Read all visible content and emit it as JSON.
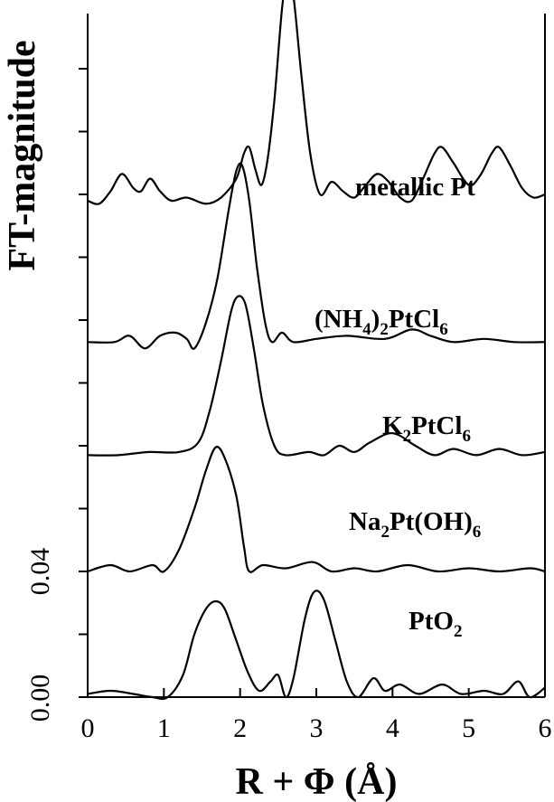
{
  "chart_data": {
    "type": "line",
    "xlabel": "R + Φ (Å)",
    "ylabel": "FT-magnitude",
    "xlim": [
      0,
      6
    ],
    "x_ticks": [
      "0",
      "1",
      "2",
      "3",
      "4",
      "5",
      "6"
    ],
    "y_tick_labels": [
      "0.00",
      "0.04"
    ],
    "series": [
      {
        "name": "PtO2",
        "label_main": "PtO",
        "label_sub": "2",
        "offset": 0.0,
        "points": [
          [
            0,
            0.001
          ],
          [
            0.3,
            0.002
          ],
          [
            0.6,
            0.001
          ],
          [
            0.85,
            0.0
          ],
          [
            1.05,
            0.0
          ],
          [
            1.25,
            0.007
          ],
          [
            1.4,
            0.02
          ],
          [
            1.55,
            0.028
          ],
          [
            1.68,
            0.0305
          ],
          [
            1.8,
            0.028
          ],
          [
            1.95,
            0.018
          ],
          [
            2.1,
            0.008
          ],
          [
            2.25,
            0.002
          ],
          [
            2.4,
            0.005
          ],
          [
            2.5,
            0.007
          ],
          [
            2.6,
            0.0
          ],
          [
            2.7,
            0.006
          ],
          [
            2.85,
            0.025
          ],
          [
            2.97,
            0.0335
          ],
          [
            3.1,
            0.031
          ],
          [
            3.25,
            0.018
          ],
          [
            3.4,
            0.005
          ],
          [
            3.55,
            0.0
          ],
          [
            3.75,
            0.006
          ],
          [
            3.9,
            0.002
          ],
          [
            4.1,
            0.004
          ],
          [
            4.35,
            0.001
          ],
          [
            4.65,
            0.004
          ],
          [
            4.9,
            0.001
          ],
          [
            5.2,
            0.002
          ],
          [
            5.45,
            0.001
          ],
          [
            5.65,
            0.005
          ],
          [
            5.8,
            0.0
          ],
          [
            6.0,
            0.003
          ]
        ]
      },
      {
        "name": "Na2Pt(OH)6",
        "label_main": "Na",
        "label_sub1": "2",
        "label_mid": "Pt(OH)",
        "label_sub2": "6",
        "offset": 0.04,
        "points": [
          [
            0,
            0.0
          ],
          [
            0.3,
            0.002
          ],
          [
            0.55,
            0.0
          ],
          [
            0.85,
            0.002
          ],
          [
            1.0,
            0.0
          ],
          [
            1.2,
            0.007
          ],
          [
            1.4,
            0.02
          ],
          [
            1.55,
            0.032
          ],
          [
            1.68,
            0.0395
          ],
          [
            1.8,
            0.036
          ],
          [
            1.95,
            0.024
          ],
          [
            2.05,
            0.008
          ],
          [
            2.12,
            0.0
          ],
          [
            2.3,
            0.002
          ],
          [
            2.6,
            0.001
          ],
          [
            2.95,
            0.003
          ],
          [
            3.2,
            0.0
          ],
          [
            3.5,
            0.001
          ],
          [
            3.8,
            0.0
          ],
          [
            4.2,
            0.002
          ],
          [
            4.6,
            0.0
          ],
          [
            5.0,
            0.001
          ],
          [
            5.4,
            0.0
          ],
          [
            5.8,
            0.001
          ],
          [
            6.0,
            0.0
          ]
        ]
      },
      {
        "name": "K2PtCl6",
        "label_main": "K",
        "label_sub1": "2",
        "label_mid": "PtCl",
        "label_sub2": "6",
        "offset": 0.077,
        "points": [
          [
            0,
            0.0
          ],
          [
            0.4,
            0.0
          ],
          [
            0.8,
            0.001
          ],
          [
            1.2,
            0.001
          ],
          [
            1.45,
            0.004
          ],
          [
            1.6,
            0.014
          ],
          [
            1.75,
            0.03
          ],
          [
            1.88,
            0.0455
          ],
          [
            1.97,
            0.0505
          ],
          [
            2.07,
            0.048
          ],
          [
            2.18,
            0.034
          ],
          [
            2.3,
            0.016
          ],
          [
            2.45,
            0.003
          ],
          [
            2.6,
            0.0
          ],
          [
            2.9,
            0.001
          ],
          [
            3.1,
            0.0
          ],
          [
            3.3,
            0.003
          ],
          [
            3.5,
            0.001
          ],
          [
            3.7,
            0.004
          ],
          [
            4.0,
            0.007
          ],
          [
            4.3,
            0.003
          ],
          [
            4.55,
            0.0
          ],
          [
            4.8,
            0.002
          ],
          [
            5.1,
            0.0
          ],
          [
            5.4,
            0.002
          ],
          [
            5.7,
            0.0
          ],
          [
            6.0,
            0.001
          ]
        ]
      },
      {
        "name": "(NH4)2PtCl6",
        "label_open": "(NH",
        "label_sub1": "4",
        "label_close": ")",
        "label_sub2": "2",
        "label_mid": "PtCl",
        "label_sub3": "6",
        "offset": 0.113,
        "points": [
          [
            0,
            0.0
          ],
          [
            0.35,
            0.0
          ],
          [
            0.55,
            0.002
          ],
          [
            0.75,
            -0.002
          ],
          [
            0.95,
            0.002
          ],
          [
            1.15,
            0.003
          ],
          [
            1.3,
            0.001
          ],
          [
            1.4,
            -0.002
          ],
          [
            1.55,
            0.006
          ],
          [
            1.7,
            0.02
          ],
          [
            1.85,
            0.042
          ],
          [
            1.95,
            0.0545
          ],
          [
            2.03,
            0.056
          ],
          [
            2.12,
            0.045
          ],
          [
            2.22,
            0.024
          ],
          [
            2.33,
            0.006
          ],
          [
            2.42,
            0.0
          ],
          [
            2.55,
            0.003
          ],
          [
            2.7,
            0.0
          ],
          [
            3.0,
            0.001
          ],
          [
            3.4,
            0.002
          ],
          [
            3.9,
            0.001
          ],
          [
            4.25,
            0.004
          ],
          [
            4.5,
            0.002
          ],
          [
            4.8,
            0.0
          ],
          [
            5.2,
            0.001
          ],
          [
            5.6,
            0.0
          ],
          [
            6.0,
            0.0
          ]
        ]
      },
      {
        "name": "metallic Pt",
        "label_main": "metallic  Pt",
        "offset": 0.157,
        "points": [
          [
            0,
            0.001
          ],
          [
            0.15,
            0.0
          ],
          [
            0.3,
            0.004
          ],
          [
            0.45,
            0.0095
          ],
          [
            0.6,
            0.005
          ],
          [
            0.7,
            0.004
          ],
          [
            0.82,
            0.008
          ],
          [
            0.95,
            0.004
          ],
          [
            1.1,
            0.001
          ],
          [
            1.3,
            0.002
          ],
          [
            1.55,
            0.0
          ],
          [
            1.75,
            0.002
          ],
          [
            1.95,
            0.008
          ],
          [
            2.05,
            0.016
          ],
          [
            2.12,
            0.018
          ],
          [
            2.2,
            0.011
          ],
          [
            2.28,
            0.006
          ],
          [
            2.36,
            0.014
          ],
          [
            2.45,
            0.033
          ],
          [
            2.55,
            0.062
          ],
          [
            2.62,
            0.0715
          ],
          [
            2.7,
            0.066
          ],
          [
            2.8,
            0.042
          ],
          [
            2.92,
            0.016
          ],
          [
            3.05,
            0.003
          ],
          [
            3.2,
            0.007
          ],
          [
            3.35,
            0.004
          ],
          [
            3.5,
            0.002
          ],
          [
            3.65,
            0.006
          ],
          [
            3.8,
            0.0095
          ],
          [
            3.95,
            0.007
          ],
          [
            4.1,
            0.002
          ],
          [
            4.25,
            0.001
          ],
          [
            4.4,
            0.008
          ],
          [
            4.55,
            0.016
          ],
          [
            4.65,
            0.018
          ],
          [
            4.8,
            0.013
          ],
          [
            5.0,
            0.006
          ],
          [
            5.15,
            0.009
          ],
          [
            5.3,
            0.016
          ],
          [
            5.4,
            0.018
          ],
          [
            5.55,
            0.012
          ],
          [
            5.7,
            0.005
          ],
          [
            5.85,
            0.002
          ],
          [
            6.0,
            0.003
          ]
        ]
      }
    ]
  }
}
